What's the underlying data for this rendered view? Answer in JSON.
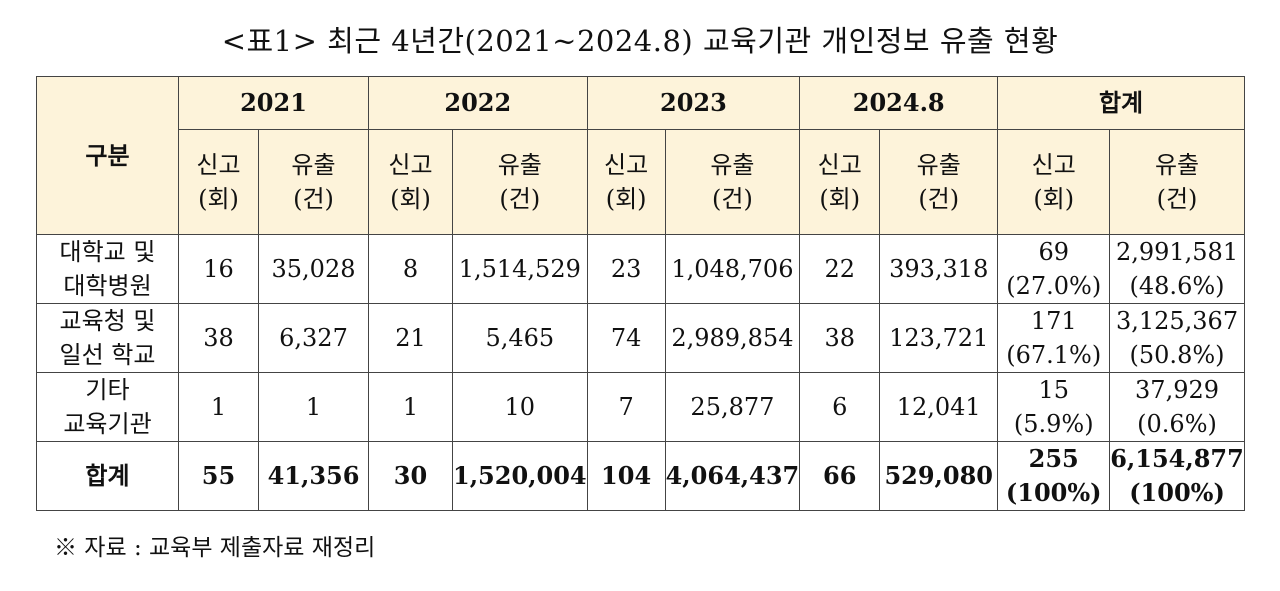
{
  "title": "<표1> 최근 4년간(2021~2024.8) 교육기관 개인정보 유출 현황",
  "header": {
    "category": "구분",
    "years": [
      "2021",
      "2022",
      "2023",
      "2024.8",
      "합계"
    ],
    "report_line1": "신고",
    "report_line2": "(회)",
    "leak_line1": "유출",
    "leak_line2": "(건)"
  },
  "rows": [
    {
      "category_line1": "대학교 및",
      "category_line2": "대학병원",
      "values": [
        "16",
        "35,028",
        "8",
        "1,514,529",
        "23",
        "1,048,706",
        "22",
        "393,318"
      ],
      "total_report": "69",
      "total_report_pct": "(27.0%)",
      "total_leak": "2,991,581",
      "total_leak_pct": "(48.6%)"
    },
    {
      "category_line1": "교육청 및",
      "category_line2": "일선 학교",
      "values": [
        "38",
        "6,327",
        "21",
        "5,465",
        "74",
        "2,989,854",
        "38",
        "123,721"
      ],
      "total_report": "171",
      "total_report_pct": "(67.1%)",
      "total_leak": "3,125,367",
      "total_leak_pct": "(50.8%)"
    },
    {
      "category_line1": "기타",
      "category_line2": "교육기관",
      "values": [
        "1",
        "1",
        "1",
        "10",
        "7",
        "25,877",
        "6",
        "12,041"
      ],
      "total_report": "15",
      "total_report_pct": "(5.9%)",
      "total_leak": "37,929",
      "total_leak_pct": "(0.6%)"
    }
  ],
  "total": {
    "label": "합계",
    "values": [
      "55",
      "41,356",
      "30",
      "1,520,004",
      "104",
      "4,064,437",
      "66",
      "529,080"
    ],
    "total_report": "255",
    "total_report_pct": "(100%)",
    "total_leak": "6,154,877",
    "total_leak_pct": "(100%)"
  },
  "source": "※ 자료 : 교육부 제출자료 재정리"
}
